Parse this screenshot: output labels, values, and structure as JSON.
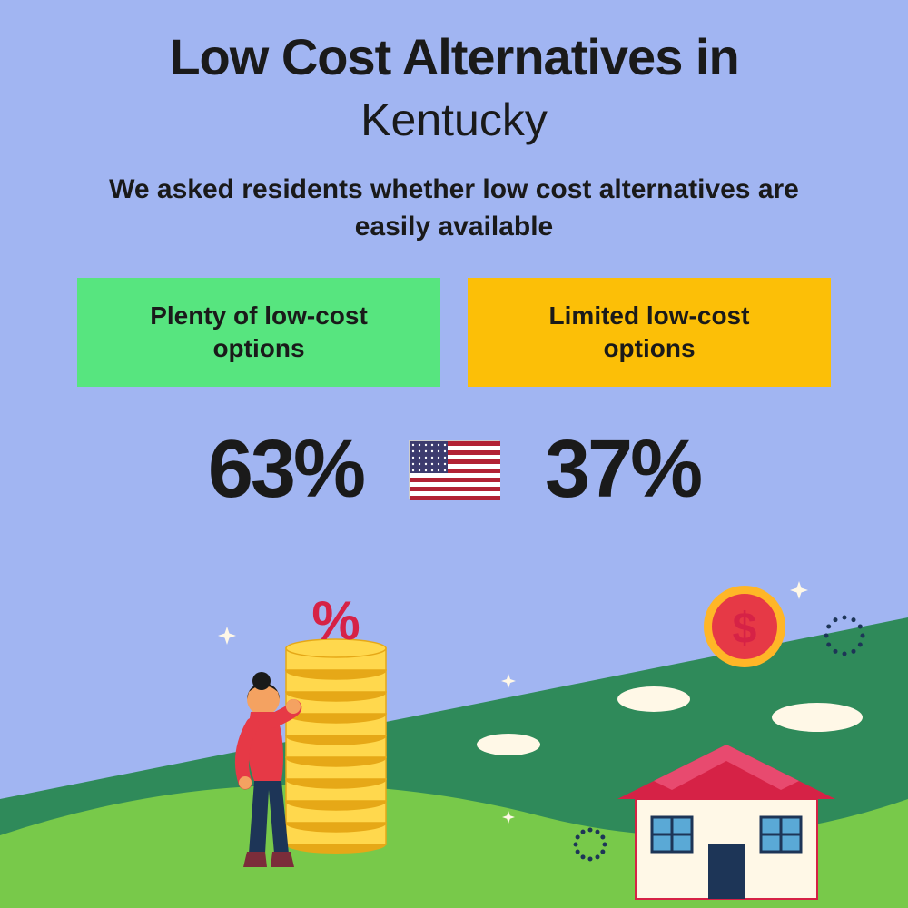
{
  "background_color": "#a1b5f2",
  "title": {
    "line1": "Low Cost Alternatives in",
    "line2": "Kentucky",
    "line1_fontsize": 56,
    "line2_fontsize": 50,
    "color": "#1a1a1a"
  },
  "description": {
    "text": "We asked residents whether low cost alternatives are easily available",
    "fontsize": 30,
    "color": "#1a1a1a"
  },
  "badges": {
    "left": {
      "text": "Plenty of low-cost options",
      "bg_color": "#57e57f",
      "text_color": "#1a1a1a",
      "fontsize": 28
    },
    "right": {
      "text": "Limited low-cost options",
      "bg_color": "#fcbf07",
      "text_color": "#1a1a1a",
      "fontsize": 28
    }
  },
  "stats": {
    "left": {
      "value": "63%",
      "fontsize": 90,
      "color": "#1a1a1a"
    },
    "right": {
      "value": "37%",
      "fontsize": 90,
      "color": "#1a1a1a"
    }
  },
  "flag": {
    "stripes": [
      "#b22234",
      "#ffffff"
    ],
    "canton_color": "#3c3b6e",
    "star_color": "#ffffff"
  },
  "illustration": {
    "hill_back_color": "#2f8a5a",
    "hill_front_color": "#78c94a",
    "sky_accent_color": "#a1b5f2",
    "person": {
      "shirt_color": "#e63946",
      "pants_color": "#1d3557",
      "skin_color": "#f4a261",
      "hair_color": "#1a1a1a",
      "boot_color": "#7b2d3a"
    },
    "coins": {
      "fill_color": "#ffd84d",
      "edge_color": "#e6a817"
    },
    "percent_symbol_color": "#d62246",
    "big_coin": {
      "outer_color": "#ffb627",
      "inner_color": "#e63946",
      "symbol_color": "#d62246"
    },
    "house": {
      "wall_color": "#fff8e7",
      "roof_color": "#d62246",
      "roof_top_color": "#e84a6f",
      "door_color": "#1d3557",
      "window_frame_color": "#1d3557",
      "window_glass_color": "#5aa9d6"
    },
    "cloud_color": "#fff8e7",
    "sparkle_color": "#fff8e7",
    "radial_dots_color": "#1d3557"
  }
}
